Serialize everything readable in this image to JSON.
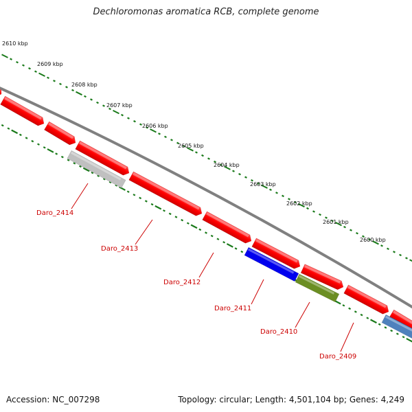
{
  "title": "Dechloromonas aromatica RCB, complete genome",
  "accession": "Accession: NC_007298",
  "stats": "Topology: circular; Length: 4,501,104 bp; Genes: 4,249",
  "colors": {
    "backbone": "#808080",
    "scale_ticks": "#1a7a1a",
    "gene_forward": "#ff0000",
    "gene_unknown": "#c0c0c0",
    "gene_blue": "#0000ee",
    "gene_olive": "#6b8e23",
    "gene_steel": "#4f81bd",
    "label": "#cc0000"
  },
  "scale": {
    "labels": [
      "2610 kbp",
      "2609 kbp",
      "2608 kbp",
      "2607 kbp",
      "2606 kbp",
      "2605 kbp",
      "2604 kbp",
      "2603 kbp",
      "2602 kbp",
      "2601 kbp",
      "2600 kbp"
    ]
  },
  "genes": [
    {
      "name": "Daro_2414",
      "color": "gene_unknown"
    },
    {
      "name": "Daro_2413",
      "color": "gene_forward"
    },
    {
      "name": "Daro_2412",
      "color": "gene_forward"
    },
    {
      "name": "Daro_2411",
      "color": "gene_blue"
    },
    {
      "name": "Daro_2410",
      "color": "gene_olive"
    },
    {
      "name": "Daro_2409",
      "color": "gene_steel"
    }
  ]
}
